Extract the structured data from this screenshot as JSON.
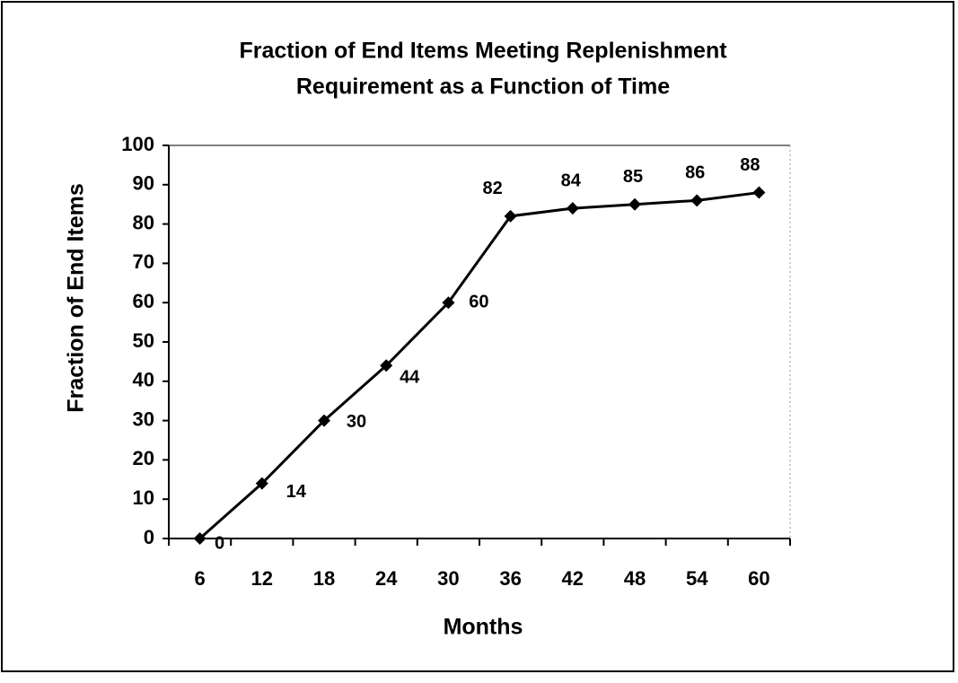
{
  "chart_data": {
    "type": "line",
    "title": "Fraction of End Items Meeting Replenishment",
    "subtitle": "Requirement as a Function of Time",
    "x_label": "Months",
    "y_label": "Fraction of End Items",
    "categories": [
      "6",
      "12",
      "18",
      "24",
      "30",
      "36",
      "42",
      "48",
      "54",
      "60"
    ],
    "values": [
      0,
      14,
      30,
      44,
      60,
      82,
      84,
      85,
      86,
      88
    ],
    "color": "#000000",
    "ylim": [
      0,
      100
    ],
    "yticks": [
      0,
      10,
      20,
      30,
      40,
      50,
      60,
      70,
      80,
      90,
      100
    ],
    "grid": false
  }
}
